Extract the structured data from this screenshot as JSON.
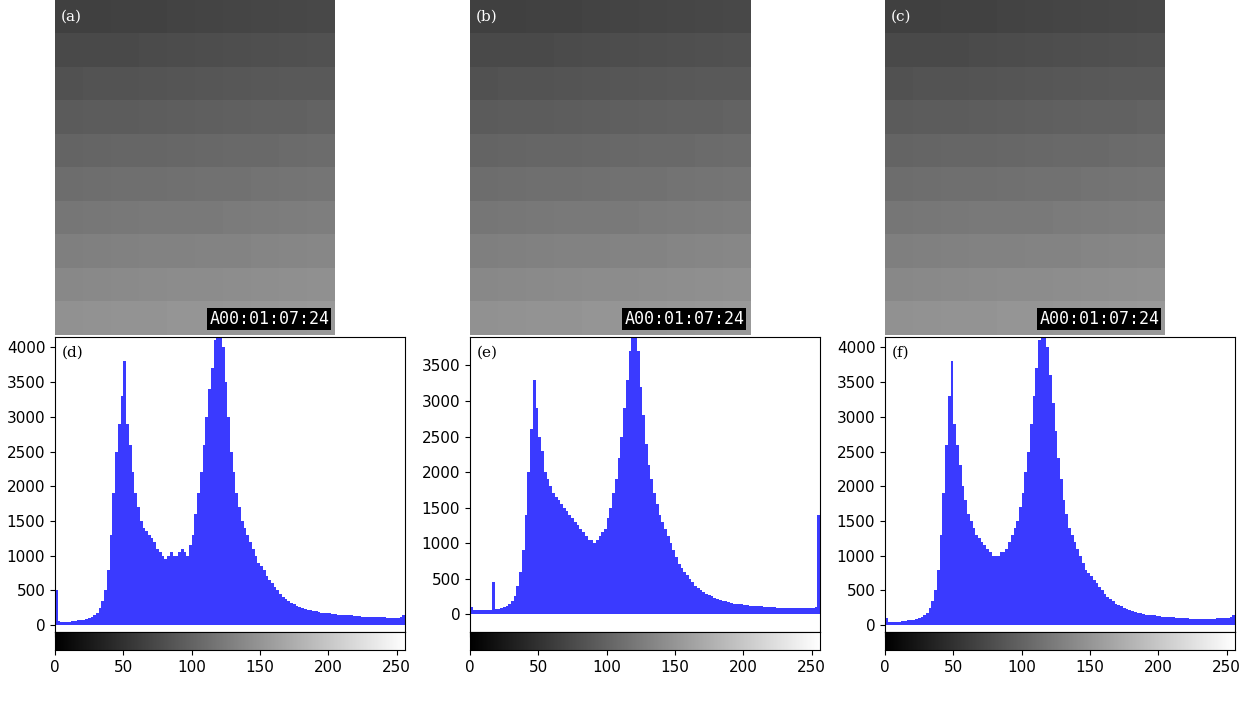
{
  "chart_data": [
    {
      "type": "image",
      "label": "(a)",
      "text": "A00:01:07:24"
    },
    {
      "type": "image",
      "label": "(b)",
      "text": "A00:01:07:24"
    },
    {
      "type": "image",
      "label": "(c)",
      "text": "A00:01:07:24"
    },
    {
      "type": "histogram",
      "label": "(d)",
      "color": "#3a3aff",
      "xlim": [
        0,
        256
      ],
      "xticks": [
        0,
        50,
        100,
        150,
        200,
        250
      ],
      "ylim": [
        -100,
        4150
      ],
      "yticks": [
        0,
        500,
        1000,
        1500,
        2000,
        2500,
        3000,
        3500,
        4000
      ],
      "bins": [
        0,
        2,
        4,
        6,
        8,
        10,
        12,
        14,
        16,
        18,
        20,
        22,
        24,
        26,
        28,
        30,
        32,
        34,
        36,
        38,
        40,
        42,
        44,
        46,
        48,
        50,
        52,
        54,
        56,
        58,
        60,
        62,
        64,
        66,
        68,
        70,
        72,
        74,
        76,
        78,
        80,
        82,
        84,
        86,
        88,
        90,
        92,
        94,
        96,
        98,
        100,
        102,
        104,
        106,
        108,
        110,
        112,
        114,
        116,
        118,
        120,
        122,
        124,
        126,
        128,
        130,
        132,
        134,
        136,
        138,
        140,
        142,
        144,
        146,
        148,
        150,
        152,
        154,
        156,
        158,
        160,
        162,
        164,
        166,
        168,
        170,
        172,
        174,
        176,
        178,
        180,
        182,
        184,
        186,
        188,
        190,
        192,
        194,
        196,
        198,
        200,
        202,
        204,
        206,
        208,
        210,
        212,
        214,
        216,
        218,
        220,
        222,
        224,
        226,
        228,
        230,
        232,
        234,
        236,
        238,
        240,
        242,
        244,
        246,
        248,
        250,
        252,
        254,
        256
      ],
      "counts": [
        500,
        60,
        50,
        50,
        50,
        50,
        60,
        60,
        70,
        70,
        80,
        90,
        100,
        120,
        150,
        180,
        250,
        350,
        500,
        800,
        1300,
        1900,
        2500,
        2900,
        3300,
        3800,
        2900,
        2600,
        2200,
        1900,
        1700,
        1500,
        1400,
        1350,
        1300,
        1250,
        1200,
        1100,
        1050,
        1000,
        950,
        1000,
        1050,
        1000,
        1000,
        1050,
        1100,
        1050,
        1000,
        1150,
        1300,
        1600,
        1900,
        2200,
        2600,
        3000,
        3400,
        3700,
        4100,
        4200,
        4200,
        4000,
        3500,
        3000,
        2500,
        2200,
        1900,
        1700,
        1500,
        1400,
        1300,
        1200,
        1100,
        1000,
        900,
        850,
        800,
        700,
        650,
        600,
        550,
        500,
        450,
        400,
        380,
        350,
        320,
        300,
        280,
        260,
        240,
        230,
        220,
        210,
        200,
        200,
        190,
        180,
        180,
        170,
        170,
        160,
        160,
        150,
        150,
        150,
        140,
        140,
        140,
        130,
        130,
        130,
        120,
        120,
        120,
        120,
        110,
        110,
        110,
        110,
        110,
        100,
        100,
        100,
        100,
        100,
        120,
        150
      ]
    },
    {
      "type": "histogram",
      "label": "(e)",
      "color": "#3a3aff",
      "xlim": [
        0,
        256
      ],
      "xticks": [
        0,
        50,
        100,
        150,
        200,
        250
      ],
      "ylim": [
        -250,
        3900
      ],
      "yticks": [
        0,
        500,
        1000,
        1500,
        2000,
        2500,
        3000,
        3500
      ],
      "bins": [
        0,
        2,
        4,
        6,
        8,
        10,
        12,
        14,
        16,
        18,
        20,
        22,
        24,
        26,
        28,
        30,
        32,
        34,
        36,
        38,
        40,
        42,
        44,
        46,
        48,
        50,
        52,
        54,
        56,
        58,
        60,
        62,
        64,
        66,
        68,
        70,
        72,
        74,
        76,
        78,
        80,
        82,
        84,
        86,
        88,
        90,
        92,
        94,
        96,
        98,
        100,
        102,
        104,
        106,
        108,
        110,
        112,
        114,
        116,
        118,
        120,
        122,
        124,
        126,
        128,
        130,
        132,
        134,
        136,
        138,
        140,
        142,
        144,
        146,
        148,
        150,
        152,
        154,
        156,
        158,
        160,
        162,
        164,
        166,
        168,
        170,
        172,
        174,
        176,
        178,
        180,
        182,
        184,
        186,
        188,
        190,
        192,
        194,
        196,
        198,
        200,
        202,
        204,
        206,
        208,
        210,
        212,
        214,
        216,
        218,
        220,
        222,
        224,
        226,
        228,
        230,
        232,
        234,
        236,
        238,
        240,
        242,
        244,
        246,
        248,
        250,
        252,
        254,
        256
      ],
      "counts": [
        100,
        60,
        60,
        60,
        60,
        60,
        60,
        60,
        450,
        70,
        80,
        90,
        100,
        120,
        150,
        180,
        250,
        400,
        600,
        900,
        1400,
        2000,
        2600,
        3300,
        2900,
        2500,
        2300,
        2000,
        1900,
        1800,
        1700,
        1650,
        1600,
        1550,
        1500,
        1450,
        1400,
        1350,
        1300,
        1250,
        1200,
        1150,
        1100,
        1050,
        1050,
        1000,
        1050,
        1100,
        1150,
        1200,
        1350,
        1500,
        1700,
        1900,
        2200,
        2500,
        2900,
        3300,
        3700,
        3950,
        3950,
        3700,
        3200,
        2800,
        2400,
        2100,
        1900,
        1700,
        1550,
        1400,
        1300,
        1200,
        1100,
        1000,
        900,
        800,
        700,
        650,
        600,
        550,
        500,
        450,
        400,
        370,
        340,
        310,
        290,
        270,
        250,
        230,
        210,
        200,
        190,
        180,
        170,
        160,
        150,
        150,
        140,
        140,
        130,
        130,
        120,
        120,
        110,
        110,
        110,
        100,
        100,
        100,
        100,
        100,
        90,
        90,
        90,
        90,
        90,
        90,
        90,
        90,
        90,
        90,
        90,
        90,
        90,
        90,
        100,
        1400
      ]
    },
    {
      "type": "histogram",
      "label": "(f)",
      "color": "#3a3aff",
      "xlim": [
        0,
        256
      ],
      "xticks": [
        0,
        50,
        100,
        150,
        200,
        250
      ],
      "ylim": [
        -100,
        4150
      ],
      "yticks": [
        0,
        500,
        1000,
        1500,
        2000,
        2500,
        3000,
        3500,
        4000
      ],
      "bins": [
        0,
        2,
        4,
        6,
        8,
        10,
        12,
        14,
        16,
        18,
        20,
        22,
        24,
        26,
        28,
        30,
        32,
        34,
        36,
        38,
        40,
        42,
        44,
        46,
        48,
        50,
        52,
        54,
        56,
        58,
        60,
        62,
        64,
        66,
        68,
        70,
        72,
        74,
        76,
        78,
        80,
        82,
        84,
        86,
        88,
        90,
        92,
        94,
        96,
        98,
        100,
        102,
        104,
        106,
        108,
        110,
        112,
        114,
        116,
        118,
        120,
        122,
        124,
        126,
        128,
        130,
        132,
        134,
        136,
        138,
        140,
        142,
        144,
        146,
        148,
        150,
        152,
        154,
        156,
        158,
        160,
        162,
        164,
        166,
        168,
        170,
        172,
        174,
        176,
        178,
        180,
        182,
        184,
        186,
        188,
        190,
        192,
        194,
        196,
        198,
        200,
        202,
        204,
        206,
        208,
        210,
        212,
        214,
        216,
        218,
        220,
        222,
        224,
        226,
        228,
        230,
        232,
        234,
        236,
        238,
        240,
        242,
        244,
        246,
        248,
        250,
        252,
        254,
        256
      ],
      "counts": [
        100,
        50,
        50,
        50,
        50,
        50,
        60,
        60,
        70,
        70,
        80,
        90,
        100,
        120,
        150,
        180,
        250,
        350,
        500,
        800,
        1300,
        1900,
        2600,
        3300,
        3800,
        2900,
        2600,
        2300,
        2000,
        1800,
        1600,
        1500,
        1400,
        1300,
        1250,
        1200,
        1150,
        1100,
        1050,
        1000,
        1000,
        1000,
        1050,
        1050,
        1100,
        1200,
        1300,
        1400,
        1500,
        1700,
        1900,
        2200,
        2500,
        2900,
        3300,
        3700,
        4100,
        4200,
        4200,
        4000,
        3600,
        3200,
        2800,
        2400,
        2100,
        1800,
        1600,
        1400,
        1300,
        1200,
        1100,
        1000,
        900,
        800,
        750,
        700,
        650,
        600,
        550,
        500,
        450,
        400,
        370,
        340,
        310,
        290,
        270,
        250,
        230,
        210,
        200,
        190,
        180,
        170,
        160,
        150,
        150,
        140,
        140,
        130,
        130,
        120,
        120,
        110,
        110,
        110,
        100,
        100,
        100,
        100,
        100,
        90,
        90,
        90,
        90,
        90,
        90,
        90,
        90,
        90,
        90,
        100,
        100,
        100,
        100,
        100,
        120,
        150
      ]
    }
  ]
}
